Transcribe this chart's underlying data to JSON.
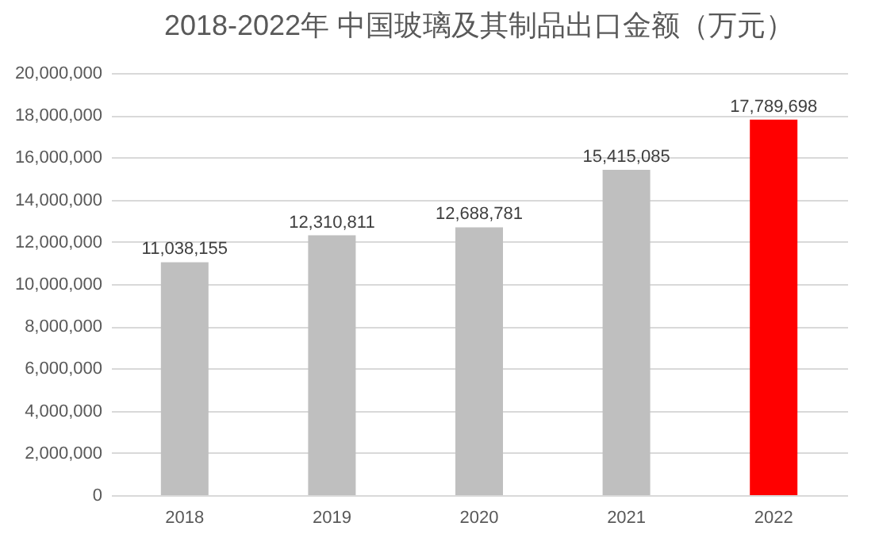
{
  "chart_data": {
    "type": "bar",
    "title": "2018-2022年 中国玻璃及其制品出口金额（万元）",
    "categories": [
      "2018",
      "2019",
      "2020",
      "2021",
      "2022"
    ],
    "values": [
      11038155,
      12310811,
      12688781,
      15415085,
      17789698
    ],
    "colors": [
      "#bfbfbf",
      "#bfbfbf",
      "#bfbfbf",
      "#bfbfbf",
      "#ff0000"
    ],
    "value_labels": [
      "11,038,155",
      "12,310,811",
      "12,688,781",
      "15,415,085",
      "17,789,698"
    ],
    "ylim": [
      0,
      20000000
    ],
    "yticks": [
      0,
      {
        "value": 2000000,
        "label": "2,000,000"
      },
      {
        "value": 4000000,
        "label": "4,000,000"
      },
      {
        "value": 6000000,
        "label": "6,000,000"
      },
      {
        "value": 8000000,
        "label": "8,000,000"
      },
      {
        "value": 10000000,
        "label": "10,000,000"
      },
      {
        "value": 12000000,
        "label": "12,000,000"
      },
      {
        "value": 14000000,
        "label": "14,000,000"
      },
      {
        "value": 16000000,
        "label": "16,000,000"
      },
      {
        "value": 18000000,
        "label": "18,000,000"
      },
      {
        "value": 20000000,
        "label": "20,000,000"
      }
    ],
    "grid": "y"
  }
}
